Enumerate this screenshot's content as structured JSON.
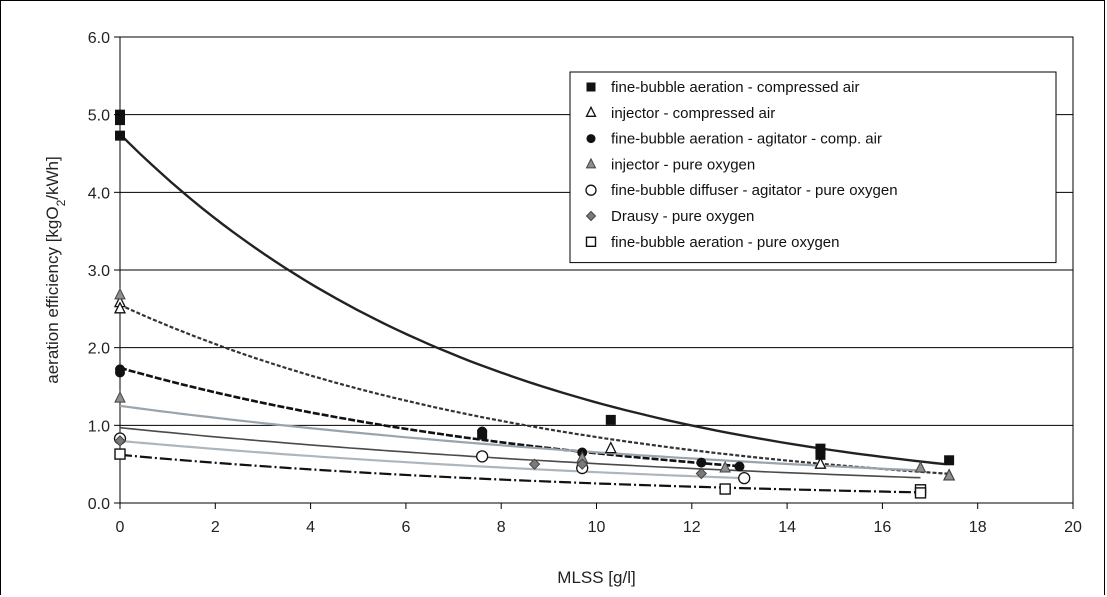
{
  "chart_data": {
    "type": "scatter",
    "xlabel": "MLSS [g/l]",
    "ylabel": {
      "prefix": "aeration efficiency [kgO",
      "sub": "2",
      "suffix": "/kWh]"
    },
    "xlim": [
      0,
      20
    ],
    "ylim": [
      0,
      6
    ],
    "x_ticks": [
      "0",
      "2",
      "4",
      "6",
      "8",
      "10",
      "12",
      "14",
      "16",
      "18",
      "20"
    ],
    "y_ticks": [
      "0.0",
      "1.0",
      "2.0",
      "3.0",
      "4.0",
      "5.0",
      "6.0"
    ],
    "grid": "horizontal",
    "legend_position": "top-right",
    "series": [
      {
        "name": "fine-bubble aeration - compressed air",
        "marker": "filled-square",
        "color": "#111111",
        "points": [
          [
            0,
            5.0
          ],
          [
            0,
            4.93
          ],
          [
            0,
            4.73
          ],
          [
            7.6,
            0.88
          ],
          [
            10.3,
            1.07
          ],
          [
            14.7,
            0.7
          ],
          [
            14.7,
            0.62
          ],
          [
            17.4,
            0.55
          ]
        ],
        "trend": {
          "kind": "exp",
          "y0": 4.75,
          "k": 0.13,
          "x_end": 17.3,
          "stroke": "#222222",
          "width": 2.4,
          "dash": ""
        }
      },
      {
        "name": "injector - compressed air",
        "marker": "open-triangle",
        "color": "#111111",
        "points": [
          [
            0,
            2.58
          ],
          [
            0,
            2.5
          ],
          [
            10.3,
            0.7
          ],
          [
            14.7,
            0.5
          ],
          [
            17.4,
            0.35
          ]
        ],
        "trend": {
          "kind": "exp",
          "y0": 2.55,
          "k": 0.11,
          "x_end": 17.4,
          "stroke": "#333333",
          "width": 2.2,
          "dash": "4 2"
        }
      },
      {
        "name": "fine-bubble aeration - agitator - comp. air",
        "marker": "filled-circle",
        "color": "#111111",
        "points": [
          [
            0,
            1.72
          ],
          [
            0,
            1.68
          ],
          [
            7.6,
            0.92
          ],
          [
            9.7,
            0.65
          ],
          [
            12.2,
            0.52
          ],
          [
            13.0,
            0.47
          ]
        ],
        "trend": {
          "kind": "exp",
          "y0": 1.74,
          "k": 0.1,
          "x_end": 13.1,
          "stroke": "#111111",
          "width": 2.6,
          "dash": "7 2"
        }
      },
      {
        "name": "injector - pure oxygen",
        "marker": "grey-triangle",
        "color": "#888888",
        "points": [
          [
            0,
            2.68
          ],
          [
            0,
            1.35
          ],
          [
            9.7,
            0.58
          ],
          [
            12.7,
            0.45
          ],
          [
            16.8,
            0.45
          ],
          [
            17.4,
            0.35
          ]
        ],
        "trend": {
          "kind": "exp",
          "y0": 1.25,
          "k": 0.065,
          "x_end": 16.8,
          "stroke": "#9aa4ad",
          "width": 2.2,
          "dash": ""
        }
      },
      {
        "name": "fine-bubble diffuser - agitator - pure oxygen",
        "marker": "open-circle",
        "color": "#111111",
        "points": [
          [
            0,
            0.83
          ],
          [
            7.6,
            0.6
          ],
          [
            9.7,
            0.45
          ],
          [
            13.1,
            0.32
          ]
        ],
        "trend": {
          "kind": "exp",
          "y0": 0.8,
          "k": 0.07,
          "x_end": 13.0,
          "stroke": "#aeb6bd",
          "width": 2.2,
          "dash": ""
        }
      },
      {
        "name": "Drausy - pure oxygen",
        "marker": "grey-diamond",
        "color": "#777777",
        "points": [
          [
            0,
            0.8
          ],
          [
            8.7,
            0.5
          ],
          [
            9.7,
            0.5
          ],
          [
            12.2,
            0.38
          ]
        ],
        "trend": {
          "kind": "exp",
          "y0": 0.97,
          "k": 0.065,
          "x_end": 16.8,
          "stroke": "#4a4a4a",
          "width": 1.6,
          "dash": ""
        }
      },
      {
        "name": "fine-bubble aeration - pure oxygen",
        "marker": "open-square",
        "color": "#111111",
        "points": [
          [
            0,
            0.63
          ],
          [
            12.7,
            0.18
          ],
          [
            16.8,
            0.17
          ],
          [
            16.8,
            0.13
          ]
        ],
        "trend": {
          "kind": "exp",
          "y0": 0.62,
          "k": 0.09,
          "x_end": 16.8,
          "stroke": "#111111",
          "width": 2.2,
          "dash": "12 3 2 3"
        }
      }
    ]
  }
}
